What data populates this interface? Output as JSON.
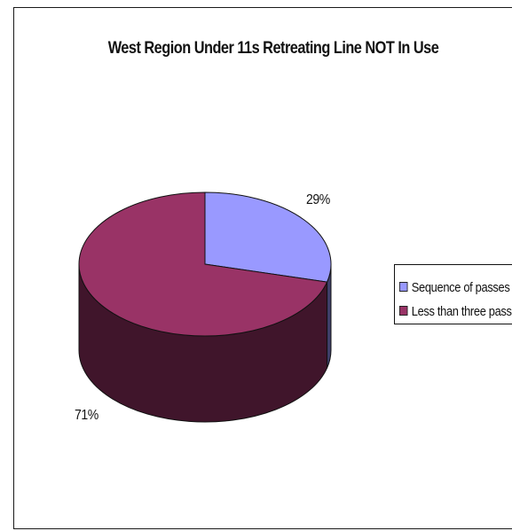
{
  "chart_data": {
    "type": "pie",
    "title": "West Region Under 11s Retreating Line NOT In Use",
    "categories": [
      "Sequence of passes",
      "Less than three passes"
    ],
    "values": [
      29,
      71
    ],
    "value_labels": [
      "29%",
      "71%"
    ],
    "colors": [
      "#9999ff",
      "#993366"
    ],
    "legend": "right",
    "three_d": true
  }
}
